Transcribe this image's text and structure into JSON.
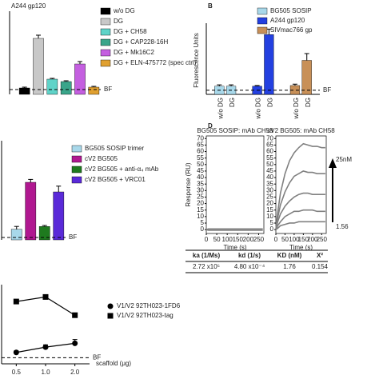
{
  "chart_data": [
    {
      "type": "bar",
      "title": "A244 gp120",
      "categories": [
        "w/o DG",
        "DG",
        "DG + CH58",
        "DG + CAP228-16H",
        "DG + Mk16C2",
        "DG + ELN-475772 (spec ctrl)"
      ],
      "values": [
        8,
        70,
        19,
        16,
        38,
        9
      ],
      "errors": [
        1,
        4,
        1,
        1,
        3,
        1
      ],
      "colors": [
        "#000000",
        "#c8c8c8",
        "#5fd3c8",
        "#3aa58a",
        "#c45fe0",
        "#e0a030"
      ],
      "ylim": [
        0,
        100
      ],
      "reference": {
        "label": "BF",
        "value": 6
      }
    },
    {
      "type": "grouped-bar",
      "label": "B",
      "ylabel": "Fluorescence Units",
      "categories": [
        "w/o DG",
        "DG"
      ],
      "series": [
        {
          "name": "BG505 SOSIP",
          "color": "#a8d8ea",
          "values": [
            6,
            6
          ],
          "errors": [
            1,
            1
          ]
        },
        {
          "name": "A244 gp120",
          "color": "#2340e0",
          "values": [
            6,
            44
          ],
          "errors": [
            0.5,
            4
          ]
        },
        {
          "name": "SIVmac766 gp",
          "color": "#c89058",
          "values": [
            6.5,
            25
          ],
          "errors": [
            1,
            5
          ]
        }
      ],
      "ylim": [
        0,
        50
      ],
      "reference": {
        "label": "BF",
        "value": 3
      }
    },
    {
      "type": "bar",
      "categories": [
        "BG505 SOSIP trimer",
        "cV2 BG505",
        "cV2 BG505 + anti-α₄ mAb",
        "cV2 BG505 + VRC01"
      ],
      "values": [
        11,
        60,
        14,
        50
      ],
      "errors": [
        3,
        3,
        1,
        6
      ],
      "colors": [
        "#a8d8ea",
        "#b01890",
        "#1e7a1e",
        "#5a2ad8"
      ],
      "ylim": [
        0,
        100
      ],
      "reference": {
        "label": "BF",
        "value": 2.5
      }
    },
    {
      "type": "sensorgram",
      "label": "D",
      "title": "BG505 SOSIP: mAb CH58",
      "xlabel": "Time (s)",
      "ylabel": "Response (RU)",
      "xlim": [
        0,
        275
      ],
      "xticks": [
        0,
        50,
        100,
        150,
        200,
        250
      ],
      "ylim": [
        -3,
        72
      ],
      "yticks": [
        0,
        5,
        10,
        15,
        20,
        25,
        30,
        35,
        40,
        45,
        50,
        55,
        60,
        65,
        70
      ],
      "x": [
        0,
        10,
        25,
        50,
        75,
        100,
        125,
        150,
        175,
        200,
        225,
        250,
        270
      ],
      "series": [
        {
          "color": "#808080",
          "values": [
            0,
            0.5,
            0.5,
            0.5,
            0.5,
            0.5,
            0.5,
            0.5,
            0.5,
            0.5,
            0.5,
            0.5,
            0.5
          ]
        },
        {
          "color": "#808080",
          "values": [
            0,
            -0.5,
            -0.5,
            -0.5,
            -0.5,
            -0.5,
            -0.5,
            -0.5,
            -0.5,
            -0.5,
            -0.5,
            -0.5,
            -0.5
          ]
        }
      ]
    },
    {
      "type": "sensorgram",
      "title": "cV2 BG505: mAb CH58",
      "xlabel": "Time (s)",
      "xlim": [
        0,
        275
      ],
      "xticks": [
        0,
        50,
        100,
        150,
        200,
        250
      ],
      "ylim": [
        -3,
        72
      ],
      "yticks": [
        0,
        5,
        10,
        15,
        20,
        25,
        30,
        35,
        40,
        45,
        50,
        55,
        60,
        65,
        70
      ],
      "x": [
        0,
        10,
        25,
        50,
        75,
        100,
        125,
        150,
        175,
        200,
        225,
        250,
        270
      ],
      "series": [
        {
          "color": "#808080",
          "values": [
            0,
            13,
            28,
            43,
            53,
            59,
            63,
            66,
            65,
            64,
            64,
            63,
            63
          ]
        },
        {
          "color": "#808080",
          "values": [
            0,
            9,
            19,
            29,
            36,
            41,
            43,
            45,
            44,
            44,
            43,
            43,
            43
          ]
        },
        {
          "color": "#808080",
          "values": [
            0,
            6,
            12,
            18,
            22,
            25,
            27,
            28,
            28,
            27,
            27,
            27,
            27
          ]
        },
        {
          "color": "#808080",
          "values": [
            0,
            3,
            6,
            10,
            12,
            14,
            14,
            15,
            15,
            15,
            14,
            14,
            14
          ]
        },
        {
          "color": "#808080",
          "values": [
            0,
            1,
            3,
            4,
            5,
            5,
            6,
            6,
            6,
            6,
            6,
            6,
            6
          ]
        }
      ],
      "annotations": [
        "25nM",
        "1.56"
      ]
    },
    {
      "type": "line",
      "xlabel": "scaffold (μg)",
      "categories": [
        "0.5",
        "1.0",
        "2.0"
      ],
      "series": [
        {
          "name": "V1/V2 92TH023-1FD6",
          "color": "#000000",
          "marker": "circle",
          "values": [
            15,
            22,
            27
          ],
          "errors": [
            2,
            3,
            5
          ]
        },
        {
          "name": "V1/V2 92TH023-tag",
          "color": "#000000",
          "marker": "square",
          "values": [
            82,
            88,
            64
          ],
          "errors": [
            2,
            2,
            2
          ]
        }
      ],
      "ylim": [
        0,
        100
      ],
      "reference": {
        "label": "BF",
        "value": 8
      }
    }
  ],
  "table": {
    "header": [
      "ka (1/Ms)",
      "kd (1/s)",
      "KD (nM)",
      "X²"
    ],
    "rows": [
      [
        "2.72 x10⁵",
        "4.80 x10⁻⁴",
        "1.76",
        "0.154"
      ]
    ]
  }
}
